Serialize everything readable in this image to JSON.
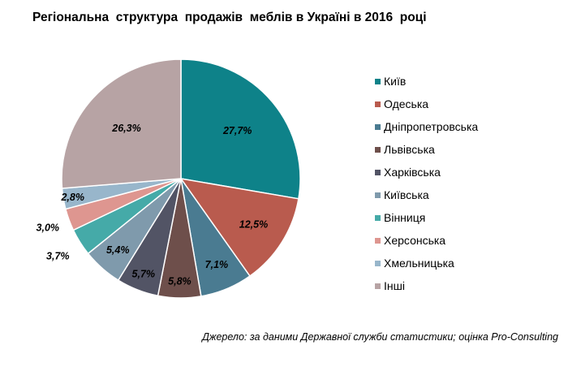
{
  "chart_data": {
    "type": "pie",
    "title": "Регіональна  структура  продажів  меблів в Україні в 2016  році",
    "categories": [
      "Київ",
      "Одеська",
      "Дніпропетровська",
      "Львівська",
      "Харківська",
      "Київська",
      "Вінниця",
      "Херсонська",
      "Хмельницька",
      "Інші"
    ],
    "values": [
      27.7,
      12.5,
      7.1,
      5.8,
      5.7,
      5.4,
      3.7,
      3.0,
      2.8,
      26.3
    ],
    "data_labels": [
      "27,7%",
      "12,5%",
      "7,1%",
      "5,8%",
      "5,7%",
      "5,4%",
      "3,7%",
      "3,0%",
      "2,8%",
      "26,3%"
    ],
    "colors": [
      "#0e8289",
      "#b95b4e",
      "#4a7b91",
      "#6e4f4b",
      "#525465",
      "#7f9aac",
      "#45aaa8",
      "#de9690",
      "#98b6cb",
      "#b7a3a4"
    ],
    "legend_position": "right"
  },
  "source_note": "Джерело: за даними Державної служби статистики; оцінка Pro-Consulting"
}
